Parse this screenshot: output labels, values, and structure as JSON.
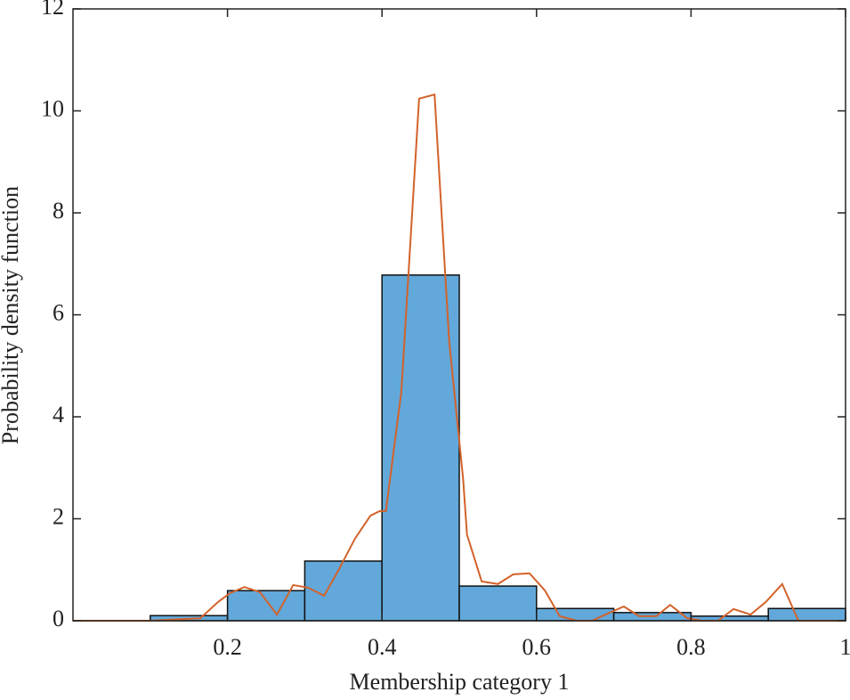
{
  "chart_data": {
    "type": "histogram",
    "xlabel": "Membership category 1",
    "ylabel": "Probability density function",
    "bins": [
      0.1,
      0.2,
      0.3,
      0.4,
      0.5,
      0.6,
      0.7,
      0.8,
      0.9,
      1.0
    ],
    "values": [
      0.1,
      0.59,
      1.17,
      6.78,
      0.68,
      0.24,
      0.16,
      0.09,
      0.24
    ],
    "color": "#62a8da",
    "line": {
      "color": "#d3622a",
      "x": [
        0,
        0.099,
        0.165,
        0.188,
        0.203,
        0.222,
        0.242,
        0.264,
        0.285,
        0.304,
        0.325,
        0.344,
        0.365,
        0.385,
        0.397,
        0.405,
        0.425,
        0.448,
        0.468,
        0.487,
        0.505,
        0.51,
        0.529,
        0.55,
        0.57,
        0.591,
        0.611,
        0.63,
        0.652,
        0.672,
        0.692,
        0.713,
        0.733,
        0.755,
        0.773,
        0.795,
        0.815,
        0.835,
        0.855,
        0.877,
        0.897,
        0.918,
        0.939,
        1
      ],
      "values": [
        0,
        0,
        0.05,
        0.37,
        0.54,
        0.66,
        0.56,
        0.12,
        0.7,
        0.65,
        0.49,
        1.0,
        1.61,
        2.06,
        2.15,
        2.15,
        4.49,
        10.24,
        10.32,
        5.47,
        2.78,
        1.69,
        0.77,
        0.72,
        0.91,
        0.93,
        0.59,
        0.09,
        0,
        0,
        0.14,
        0.28,
        0.09,
        0.09,
        0.31,
        0.05,
        0,
        0,
        0.23,
        0.12,
        0.37,
        0.72,
        0,
        0
      ]
    },
    "xlim": [
      0,
      1
    ],
    "ylim": [
      0,
      12
    ],
    "xticks": [
      0.2,
      0.4,
      0.6,
      0.8,
      1
    ],
    "yticks": [
      0,
      2,
      4,
      6,
      8,
      10,
      12
    ]
  }
}
